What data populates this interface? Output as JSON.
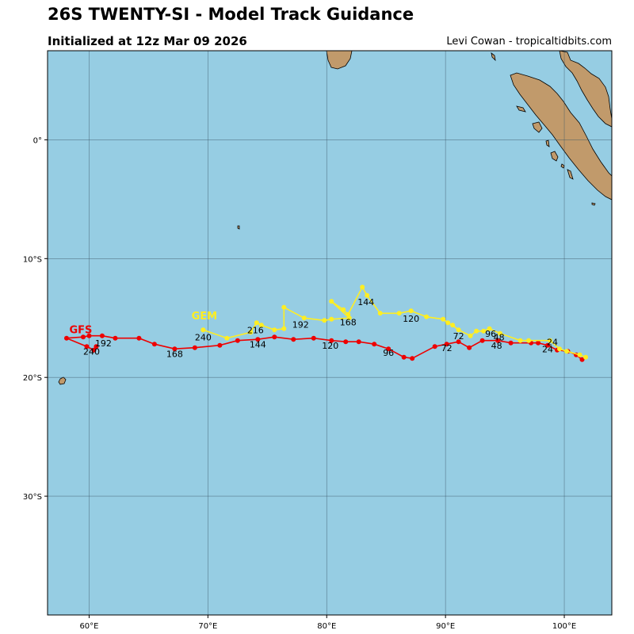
{
  "header": {
    "title": "26S TWENTY-SI - Model Track Guidance",
    "subtitle": "Initialized at 12z Mar 09 2026",
    "credit": "Levi Cowan - tropicaltidbits.com"
  },
  "colors": {
    "ocean": "#96cde3",
    "land": "#c19a6b",
    "grid": "#3a5566",
    "gfs": "#ee0000",
    "gem": "#ffee22"
  },
  "map_data": {
    "lon_range": [
      56.5,
      104
    ],
    "lat_range": [
      -40,
      7.5
    ],
    "lon_ticks": [
      {
        "value": 60,
        "label": "60°E"
      },
      {
        "value": 70,
        "label": "70°E"
      },
      {
        "value": 80,
        "label": "80°E"
      },
      {
        "value": 90,
        "label": "90°E"
      },
      {
        "value": 100,
        "label": "100°E"
      }
    ],
    "lat_ticks": [
      {
        "value": 0,
        "label": "0°"
      },
      {
        "value": -10,
        "label": "10°S"
      },
      {
        "value": -20,
        "label": "20°S"
      },
      {
        "value": -30,
        "label": "30°S"
      }
    ],
    "tracks": [
      {
        "name": "GFS",
        "color": "#ee0000",
        "label_pos": [
          59.3,
          -16.3
        ],
        "points": [
          [
            101.5,
            -18.5
          ],
          [
            101,
            -18.1
          ],
          [
            100.3,
            -17.8
          ],
          [
            99.4,
            -17.7
          ],
          [
            98.6,
            -17.3
          ],
          [
            97.8,
            -17.1
          ],
          [
            97.2,
            -17.1
          ],
          [
            95.5,
            -17.1
          ],
          [
            94.4,
            -16.9
          ],
          [
            93.1,
            -16.9
          ],
          [
            92,
            -17.5
          ],
          [
            91.1,
            -17
          ],
          [
            90.1,
            -17.2
          ],
          [
            89.1,
            -17.4
          ],
          [
            87.2,
            -18.4
          ],
          [
            86.5,
            -18.3
          ],
          [
            85.2,
            -17.6
          ],
          [
            84,
            -17.2
          ],
          [
            82.7,
            -17
          ],
          [
            81.6,
            -17
          ],
          [
            80.4,
            -16.9
          ],
          [
            78.9,
            -16.7
          ],
          [
            77.2,
            -16.8
          ],
          [
            75.6,
            -16.6
          ],
          [
            74.2,
            -16.8
          ],
          [
            72.5,
            -16.9
          ],
          [
            71,
            -17.3
          ],
          [
            68.9,
            -17.5
          ],
          [
            67.2,
            -17.6
          ],
          [
            65.5,
            -17.2
          ],
          [
            64.2,
            -16.7
          ],
          [
            62.2,
            -16.7
          ],
          [
            61.1,
            -16.5
          ],
          [
            60,
            -16.5
          ],
          [
            59.5,
            -16.6
          ],
          [
            58.1,
            -16.7
          ],
          [
            59.8,
            -17.4
          ],
          [
            60.4,
            -17.7
          ],
          [
            60.6,
            -17.4
          ]
        ],
        "hour_labels": [
          {
            "text": "24",
            "pos": [
              98.6,
              -17.9
            ]
          },
          {
            "text": "48",
            "pos": [
              94.3,
              -17.6
            ]
          },
          {
            "text": "72",
            "pos": [
              90.1,
              -17.8
            ]
          },
          {
            "text": "96",
            "pos": [
              85.2,
              -18.2
            ]
          },
          {
            "text": "120",
            "pos": [
              80.3,
              -17.6
            ]
          },
          {
            "text": "144",
            "pos": [
              74.2,
              -17.5
            ]
          },
          {
            "text": "168",
            "pos": [
              67.2,
              -18.3
            ]
          },
          {
            "text": "192",
            "pos": [
              61.2,
              -17.4
            ]
          },
          {
            "text": "240",
            "pos": [
              60.2,
              -18.1
            ]
          }
        ]
      },
      {
        "name": "GEM",
        "color": "#ffee22",
        "label_pos": [
          69.7,
          -15.1
        ],
        "points": [
          [
            101.8,
            -18.3
          ],
          [
            101.3,
            -18.1
          ],
          [
            100.2,
            -17.8
          ],
          [
            99.6,
            -17.6
          ],
          [
            98.8,
            -16.9
          ],
          [
            97,
            -16.9
          ],
          [
            96.3,
            -16.9
          ],
          [
            94.6,
            -16.3
          ],
          [
            93.7,
            -15.9
          ],
          [
            93.2,
            -16.1
          ],
          [
            92.6,
            -16.1
          ],
          [
            92.1,
            -16.5
          ],
          [
            91.1,
            -16
          ],
          [
            90.6,
            -15.6
          ],
          [
            90.2,
            -15.4
          ],
          [
            89.8,
            -15.1
          ],
          [
            88.4,
            -14.9
          ],
          [
            87.1,
            -14.4
          ],
          [
            86.1,
            -14.6
          ],
          [
            84.5,
            -14.6
          ],
          [
            83.4,
            -13.1
          ],
          [
            83,
            -12.4
          ],
          [
            81.8,
            -14.7
          ],
          [
            81.4,
            -14.3
          ],
          [
            80.4,
            -13.6
          ],
          [
            81.9,
            -15
          ],
          [
            80.4,
            -15.1
          ],
          [
            79.8,
            -15.2
          ],
          [
            78.1,
            -15
          ],
          [
            76.4,
            -14.1
          ],
          [
            76.4,
            -15.9
          ],
          [
            75.6,
            -16
          ],
          [
            74.5,
            -15.6
          ],
          [
            74.1,
            -15.4
          ],
          [
            73.6,
            -16.2
          ],
          [
            71.6,
            -16.7
          ],
          [
            69.6,
            -16
          ],
          [
            69.6,
            -16
          ]
        ],
        "hour_labels": [
          {
            "text": "24",
            "pos": [
              99,
              -17.3
            ]
          },
          {
            "text": "48",
            "pos": [
              94.5,
              -16.9
            ]
          },
          {
            "text": "72",
            "pos": [
              91.1,
              -16.8
            ]
          },
          {
            "text": "96",
            "pos": [
              93.8,
              -16.6
            ]
          },
          {
            "text": "120",
            "pos": [
              87.1,
              -15.3
            ]
          },
          {
            "text": "144",
            "pos": [
              83.3,
              -13.9
            ]
          },
          {
            "text": "168",
            "pos": [
              81.8,
              -15.6
            ]
          },
          {
            "text": "192",
            "pos": [
              77.8,
              -15.8
            ]
          },
          {
            "text": "216",
            "pos": [
              74,
              -16.3
            ]
          },
          {
            "text": "240",
            "pos": [
              69.6,
              -16.9
            ]
          }
        ]
      }
    ]
  }
}
